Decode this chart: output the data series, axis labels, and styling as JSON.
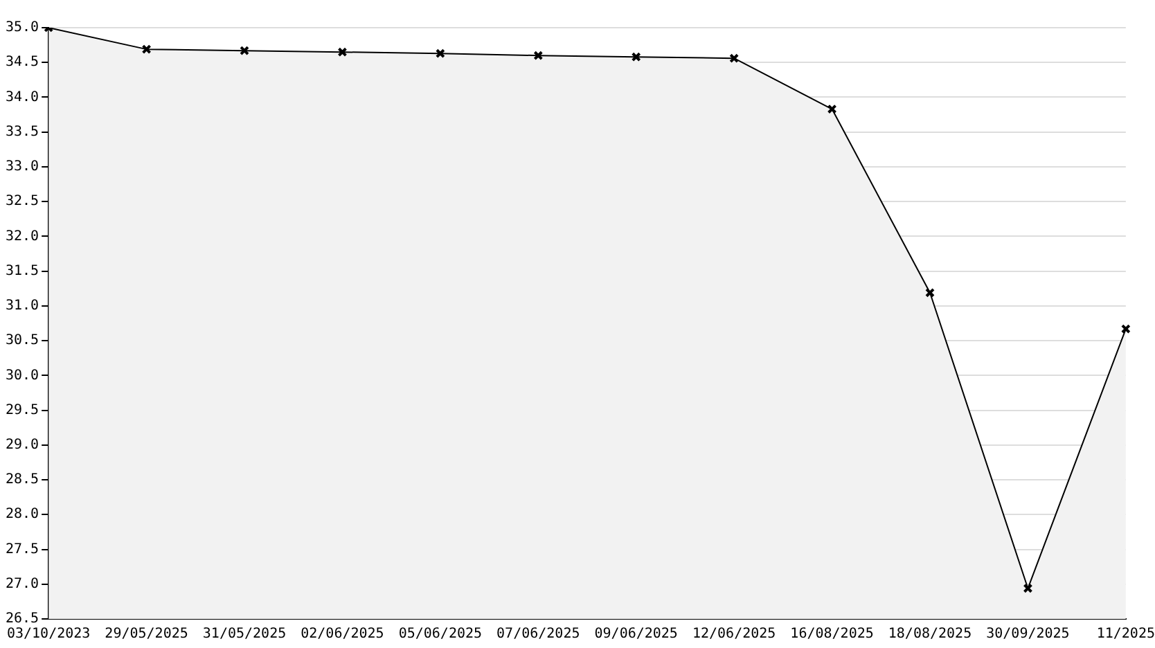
{
  "chart_data": {
    "type": "area",
    "categories": [
      "03/10/2023",
      "29/05/2025",
      "31/05/2025",
      "02/06/2025",
      "05/06/2025",
      "07/06/2025",
      "09/06/2025",
      "12/06/2025",
      "16/08/2025",
      "18/08/2025",
      "30/09/2025",
      "11/2025"
    ],
    "series": [
      {
        "color": "#000000",
        "values": [
          35.0,
          34.69,
          34.67,
          34.65,
          34.63,
          34.6,
          34.58,
          34.56,
          33.83,
          31.19,
          26.94,
          30.67
        ]
      }
    ],
    "ylim": [
      26.5,
      35.0
    ],
    "yticks": [
      26.5,
      {
        "value": 27,
        "label": "27.0"
      },
      27.5,
      {
        "value": 28,
        "label": "28.0"
      },
      28.5,
      {
        "value": 29,
        "label": "29.0"
      },
      29.5,
      {
        "value": 30,
        "label": "30.0"
      },
      30.5,
      {
        "value": 31,
        "label": "31.0"
      },
      31.5,
      {
        "value": 32,
        "label": "32.0"
      },
      32.5,
      {
        "value": 33,
        "label": "33.0"
      },
      33.5,
      {
        "value": 34,
        "label": "34.0"
      },
      34.5,
      {
        "value": 35,
        "label": "35.0"
      }
    ],
    "grid": "y",
    "marker": "cross",
    "line_style": "solid",
    "legend": false
  }
}
